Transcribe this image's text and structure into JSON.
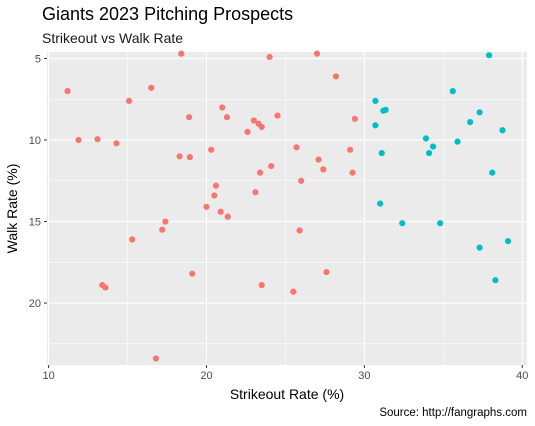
{
  "title": "Giants 2023 Pitching Prospects",
  "subtitle": "Strikeout vs Walk Rate",
  "caption": "Source: http://fangraphs.com",
  "colors": {
    "panel": "#EBEBEB",
    "grid": "#FFFFFF",
    "group_a": "#F8766D",
    "group_b": "#00BFC4"
  },
  "chart_data": {
    "type": "scatter",
    "title": "Giants 2023 Pitching Prospects",
    "subtitle": "Strikeout vs Walk Rate",
    "xlabel": "Strikeout Rate (%)",
    "ylabel": "Walk Rate (%)",
    "xlim": [
      9.9,
      40.3
    ],
    "ylim": [
      23.8,
      4.6
    ],
    "y_reversed": true,
    "x_ticks": [
      10,
      20,
      30,
      40
    ],
    "y_ticks": [
      5,
      10,
      15,
      20
    ],
    "grid": true,
    "legend": "none",
    "series": [
      {
        "color": "#F8766D",
        "points": [
          [
            11.2,
            7.0
          ],
          [
            11.9,
            10.0
          ],
          [
            13.1,
            9.95
          ],
          [
            13.4,
            18.9
          ],
          [
            13.6,
            19.05
          ],
          [
            14.3,
            10.2
          ],
          [
            15.1,
            7.6
          ],
          [
            15.3,
            16.1
          ],
          [
            16.5,
            6.8
          ],
          [
            16.8,
            23.4
          ],
          [
            17.2,
            15.5
          ],
          [
            17.4,
            15.0
          ],
          [
            18.3,
            11.0
          ],
          [
            18.4,
            4.7
          ],
          [
            18.9,
            8.6
          ],
          [
            18.95,
            11.05
          ],
          [
            19.1,
            18.2
          ],
          [
            20.0,
            14.1
          ],
          [
            20.3,
            10.6
          ],
          [
            20.5,
            13.4
          ],
          [
            20.6,
            12.8
          ],
          [
            20.9,
            14.4
          ],
          [
            21.0,
            8.0
          ],
          [
            21.3,
            8.6
          ],
          [
            21.35,
            14.7
          ],
          [
            22.6,
            9.5
          ],
          [
            23.0,
            8.8
          ],
          [
            23.1,
            13.2
          ],
          [
            23.3,
            9.0
          ],
          [
            23.4,
            12.0
          ],
          [
            23.5,
            9.2
          ],
          [
            23.5,
            18.9
          ],
          [
            24.0,
            4.9
          ],
          [
            24.1,
            11.6
          ],
          [
            24.5,
            8.5
          ],
          [
            25.5,
            19.3
          ],
          [
            25.7,
            10.45
          ],
          [
            25.9,
            15.55
          ],
          [
            26.0,
            12.5
          ],
          [
            27.0,
            4.7
          ],
          [
            27.1,
            11.2
          ],
          [
            27.4,
            11.8
          ],
          [
            27.6,
            18.1
          ],
          [
            28.2,
            6.1
          ],
          [
            29.1,
            10.6
          ],
          [
            29.25,
            12.0
          ],
          [
            29.4,
            8.7
          ]
        ]
      },
      {
        "color": "#00BFC4",
        "points": [
          [
            30.7,
            7.6
          ],
          [
            30.7,
            9.1
          ],
          [
            31.0,
            13.9
          ],
          [
            31.1,
            10.8
          ],
          [
            31.2,
            8.2
          ],
          [
            31.35,
            8.15
          ],
          [
            32.4,
            15.1
          ],
          [
            33.9,
            9.9
          ],
          [
            34.1,
            10.8
          ],
          [
            34.35,
            10.4
          ],
          [
            34.8,
            15.1
          ],
          [
            35.6,
            7.0
          ],
          [
            35.9,
            10.1
          ],
          [
            36.7,
            8.9
          ],
          [
            37.3,
            8.3
          ],
          [
            37.3,
            16.6
          ],
          [
            37.9,
            4.8
          ],
          [
            38.1,
            12.0
          ],
          [
            38.3,
            18.6
          ],
          [
            38.75,
            9.4
          ],
          [
            39.1,
            16.2
          ]
        ]
      }
    ]
  }
}
